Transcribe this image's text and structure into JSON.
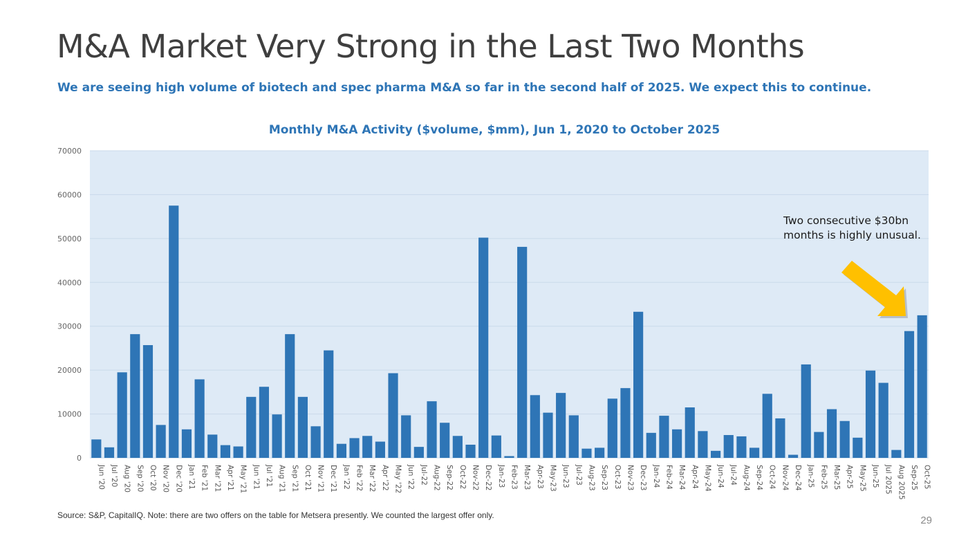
{
  "page": {
    "title": "M&A Market Very Strong in the Last Two Months",
    "subtitle": "We are seeing high volume of biotech and spec pharma M&A so far in the second half of 2025. We expect this to continue.",
    "annotation": "Two consecutive $30bn months is highly unusual.",
    "source": "Source: S&P, CapitalIQ. Note: there are two offers on the table for Metsera presently. We counted the largest offer only.",
    "page_number": "29"
  },
  "colors": {
    "bar": "#2e75b6",
    "plot_background": "#deeaf6",
    "gridline": "#c9d9ea",
    "arrow": "#ffc000",
    "title_accent": "#2e75b6"
  },
  "chart_data": {
    "type": "bar",
    "title": "Monthly M&A Activity ($volume, $mm), Jun 1, 2020 to October 2025",
    "xlabel": "",
    "ylabel": "",
    "ylim": [
      0,
      70000
    ],
    "yticks": [
      0,
      10000,
      20000,
      30000,
      40000,
      50000,
      60000,
      70000
    ],
    "grid": true,
    "legend": "none",
    "categories": [
      "Jun '20",
      "Jul '20",
      "Aug '20",
      "Sep '20",
      "Oct '20",
      "Nov '20",
      "Dec '20",
      "Jan '21",
      "Feb '21",
      "Mar '21",
      "Apr '21",
      "May '21",
      "Jun '21",
      "Jul '21",
      "Aug '21",
      "Sep '21",
      "Oct '21",
      "Nov '21",
      "Dec '21",
      "Jan '22",
      "Feb '22",
      "Mar '22",
      "Apr '22",
      "May '22",
      "Jun '22",
      "Jul-22",
      "Aug-22",
      "Sep-22",
      "Oct-22",
      "Nov-22",
      "Dec-22",
      "Jan-23",
      "Feb-23",
      "Mar-23",
      "Apr-23",
      "May-23",
      "Jun-23",
      "Jul-23",
      "Aug-23",
      "Sep-23",
      "Oct-23",
      "Nov-23",
      "Dec-23",
      "Jan-24",
      "Feb-24",
      "Mar-24",
      "Apr-24",
      "May-24",
      "Jun-24",
      "Jul-24",
      "Aug-24",
      "Sep-24",
      "Oct-24",
      "Nov-24",
      "Dec-24",
      "Jan-25",
      "Feb-25",
      "Mar-25",
      "Apr-25",
      "May-25",
      "Jun-25",
      "Jul 2025",
      "Aug 2025",
      "Sep-25",
      "Oct-25"
    ],
    "values": [
      4200,
      2400,
      19500,
      28200,
      25700,
      7500,
      57500,
      6500,
      17900,
      5300,
      2900,
      2600,
      13900,
      16200,
      9900,
      28200,
      13900,
      7200,
      24500,
      3200,
      4500,
      5000,
      3700,
      19300,
      9700,
      2500,
      12900,
      8000,
      5000,
      3000,
      50200,
      5100,
      400,
      48100,
      14300,
      10300,
      14800,
      9700,
      2100,
      2300,
      13500,
      15900,
      33300,
      5700,
      9600,
      6500,
      11500,
      6100,
      1600,
      5200,
      4900,
      2300,
      14600,
      9000,
      700,
      21300,
      5900,
      11100,
      8400,
      4600,
      19900,
      17100,
      1800,
      28900,
      32500
    ]
  }
}
